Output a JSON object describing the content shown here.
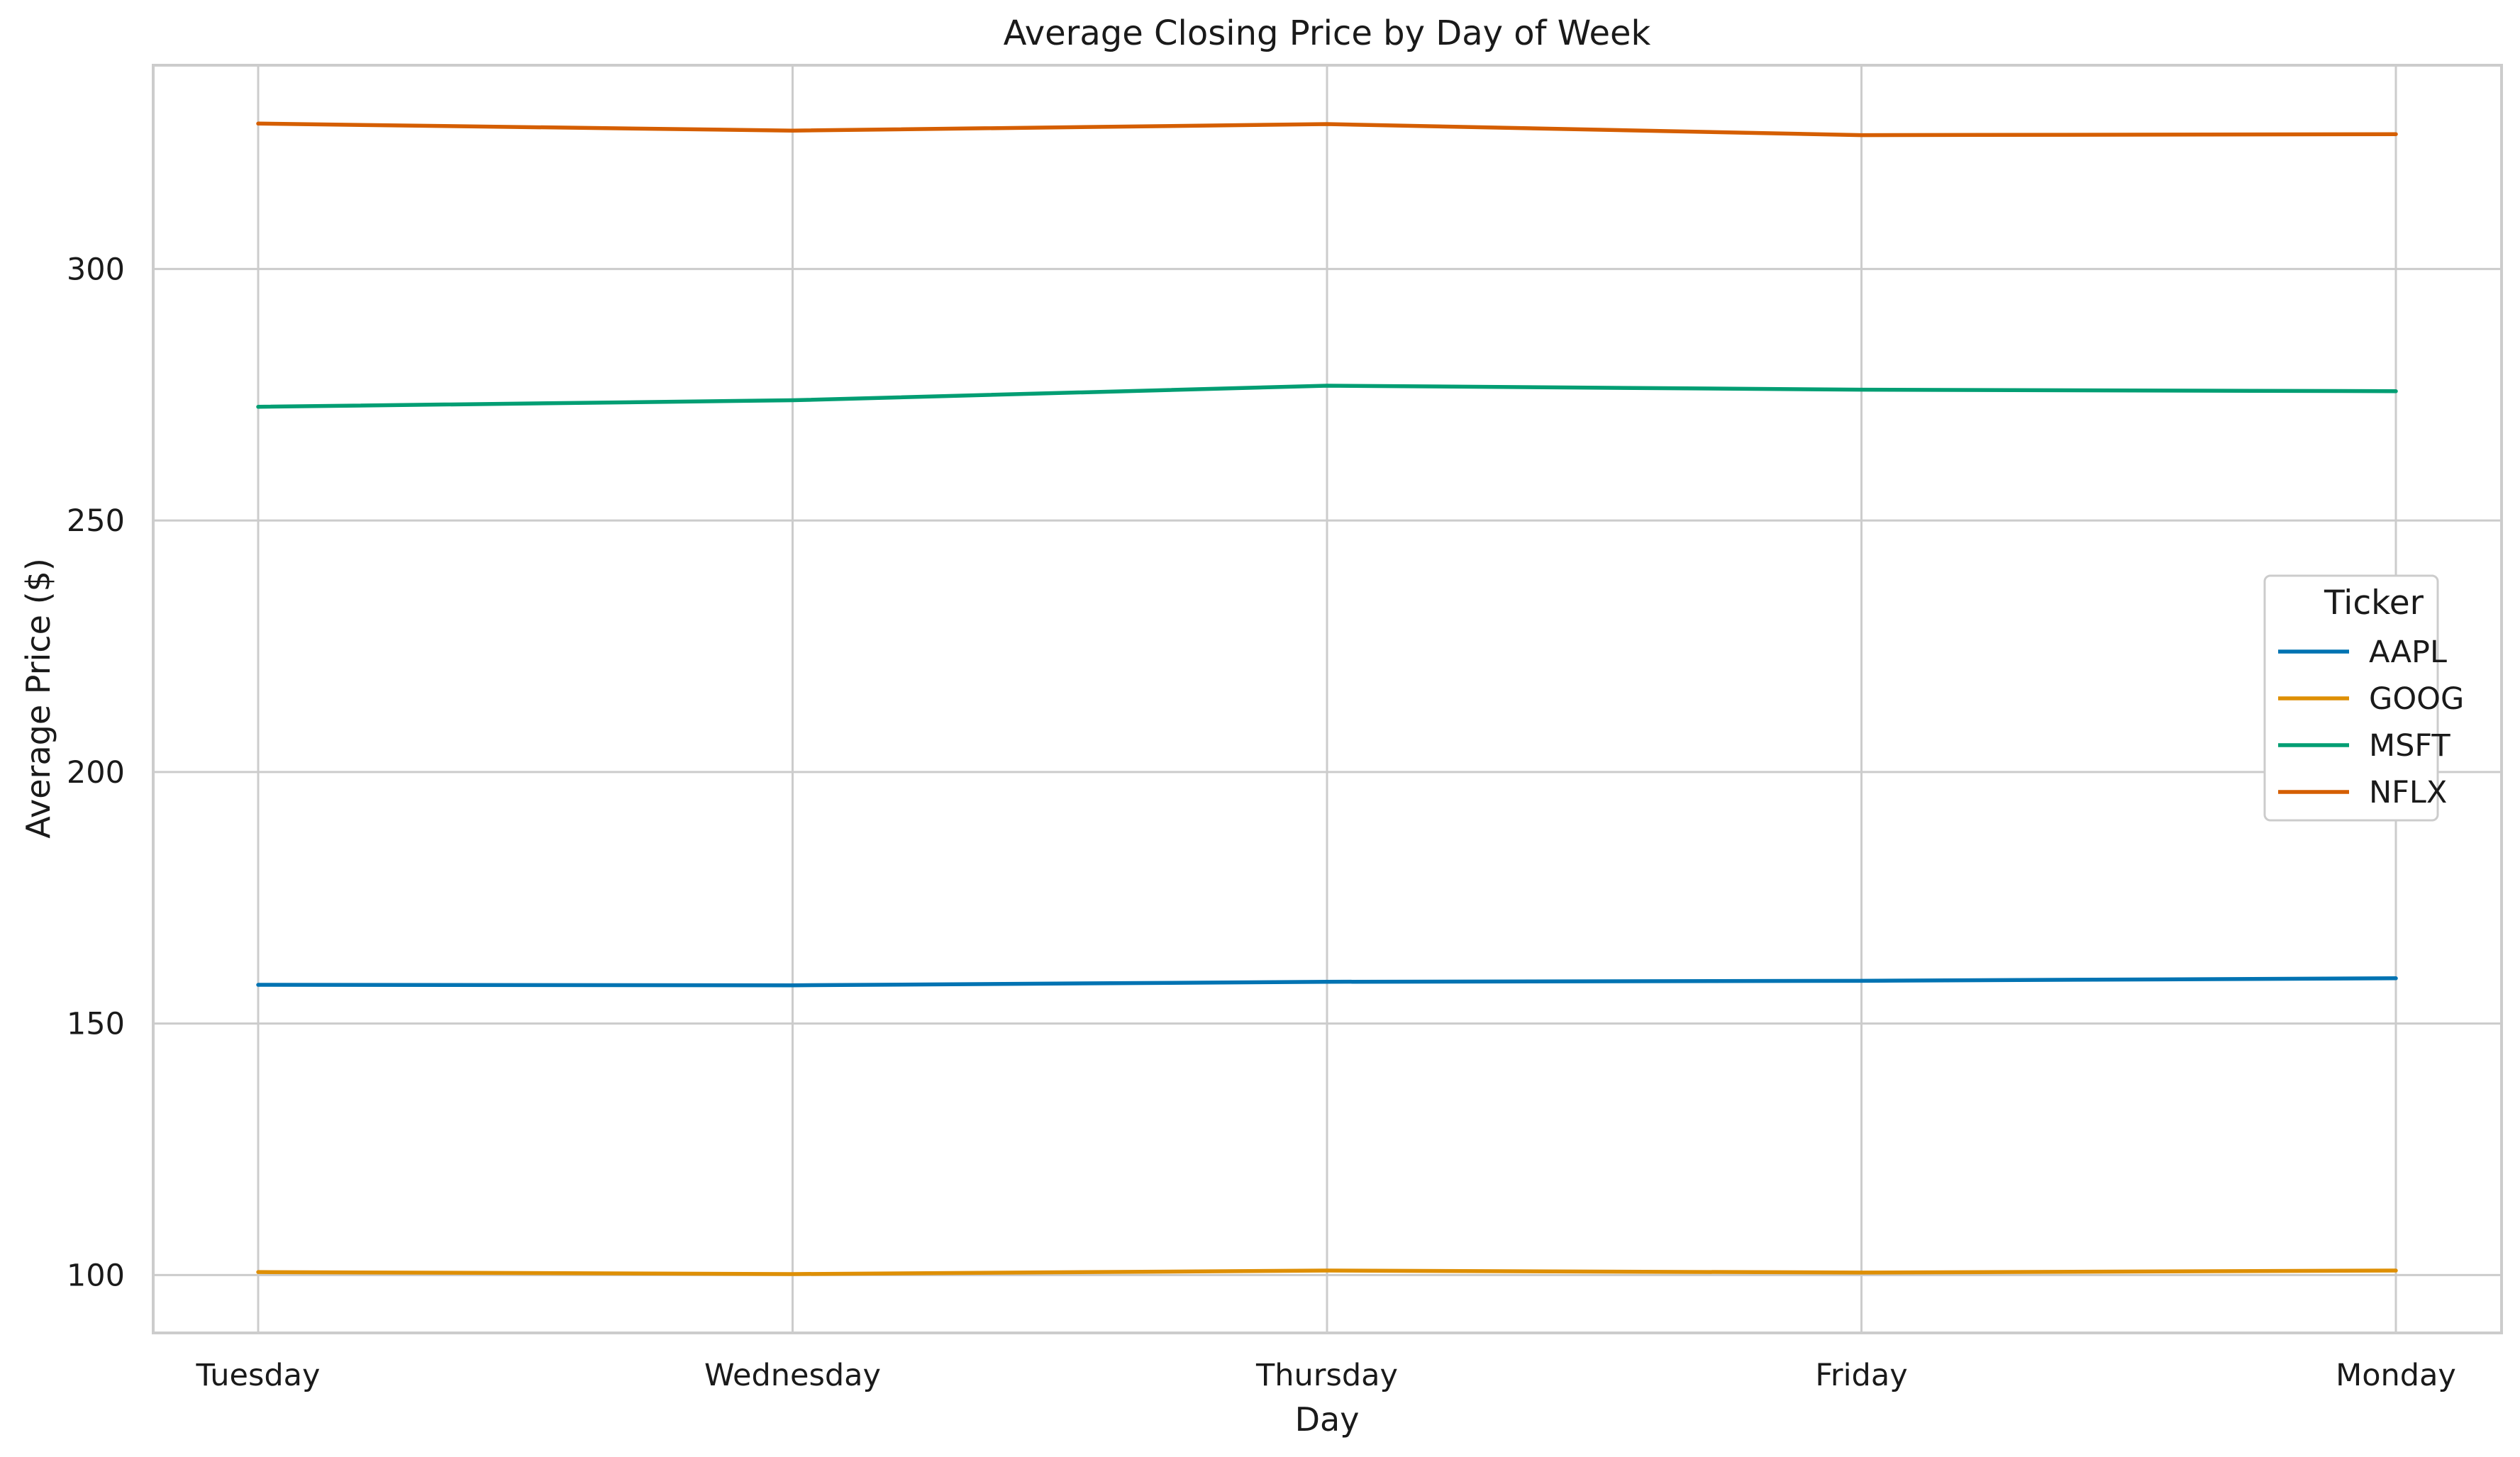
{
  "chart_data": {
    "type": "line",
    "title": "Average Closing Price by Day of Week",
    "xlabel": "Day",
    "ylabel": "Average Price ($)",
    "categories": [
      "Tuesday",
      "Wednesday",
      "Thursday",
      "Friday",
      "Monday"
    ],
    "ylim": [
      88.5,
      340.5
    ],
    "yticks": [
      100,
      150,
      200,
      250,
      300
    ],
    "grid": true,
    "legend": {
      "title": "Ticker",
      "placement": "center-right"
    },
    "series": [
      {
        "name": "AAPL",
        "color": "#0173b2",
        "values": [
          157.7,
          157.6,
          158.3,
          158.5,
          159.0
        ]
      },
      {
        "name": "GOOG",
        "color": "#de8f05",
        "values": [
          100.6,
          100.2,
          100.9,
          100.5,
          100.9
        ]
      },
      {
        "name": "MSFT",
        "color": "#029e73",
        "values": [
          272.6,
          273.9,
          276.8,
          276.0,
          275.7
        ]
      },
      {
        "name": "NFLX",
        "color": "#d55e00",
        "values": [
          328.9,
          327.5,
          328.8,
          326.6,
          326.8
        ]
      }
    ]
  }
}
